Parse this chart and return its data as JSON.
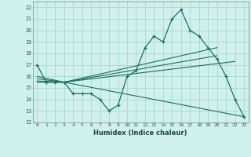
{
  "xlabel": "Humidex (Indice chaleur)",
  "xlim": [
    -0.5,
    23.5
  ],
  "ylim": [
    12,
    22.5
  ],
  "yticks": [
    12,
    13,
    14,
    15,
    16,
    17,
    18,
    19,
    20,
    21,
    22
  ],
  "xticks": [
    0,
    1,
    2,
    3,
    4,
    5,
    6,
    7,
    8,
    9,
    10,
    11,
    12,
    13,
    14,
    15,
    16,
    17,
    18,
    19,
    20,
    21,
    22,
    23
  ],
  "bg_color": "#cff0eb",
  "grid_color": "#a8d8d0",
  "line_color": "#1a6e63",
  "main_line": {
    "x": [
      0,
      1,
      2,
      3,
      4,
      5,
      6,
      7,
      8,
      9,
      10,
      11,
      12,
      13,
      14,
      15,
      16,
      17,
      18,
      19,
      20,
      21,
      22,
      23
    ],
    "y": [
      17,
      15.5,
      15.5,
      15.5,
      14.5,
      14.5,
      14.5,
      14.0,
      13.0,
      13.5,
      16.0,
      16.5,
      18.5,
      19.5,
      19.0,
      21.0,
      21.8,
      20.0,
      19.5,
      18.5,
      17.5,
      16.0,
      14.0,
      12.5
    ]
  },
  "fan_lines": [
    {
      "x": [
        0,
        3,
        20
      ],
      "y": [
        16.0,
        15.5,
        18.5
      ]
    },
    {
      "x": [
        0,
        3,
        20
      ],
      "y": [
        15.8,
        15.5,
        17.8
      ]
    },
    {
      "x": [
        0,
        3,
        22
      ],
      "y": [
        15.6,
        15.5,
        17.3
      ]
    },
    {
      "x": [
        0,
        3,
        23
      ],
      "y": [
        15.5,
        15.5,
        12.5
      ]
    }
  ]
}
